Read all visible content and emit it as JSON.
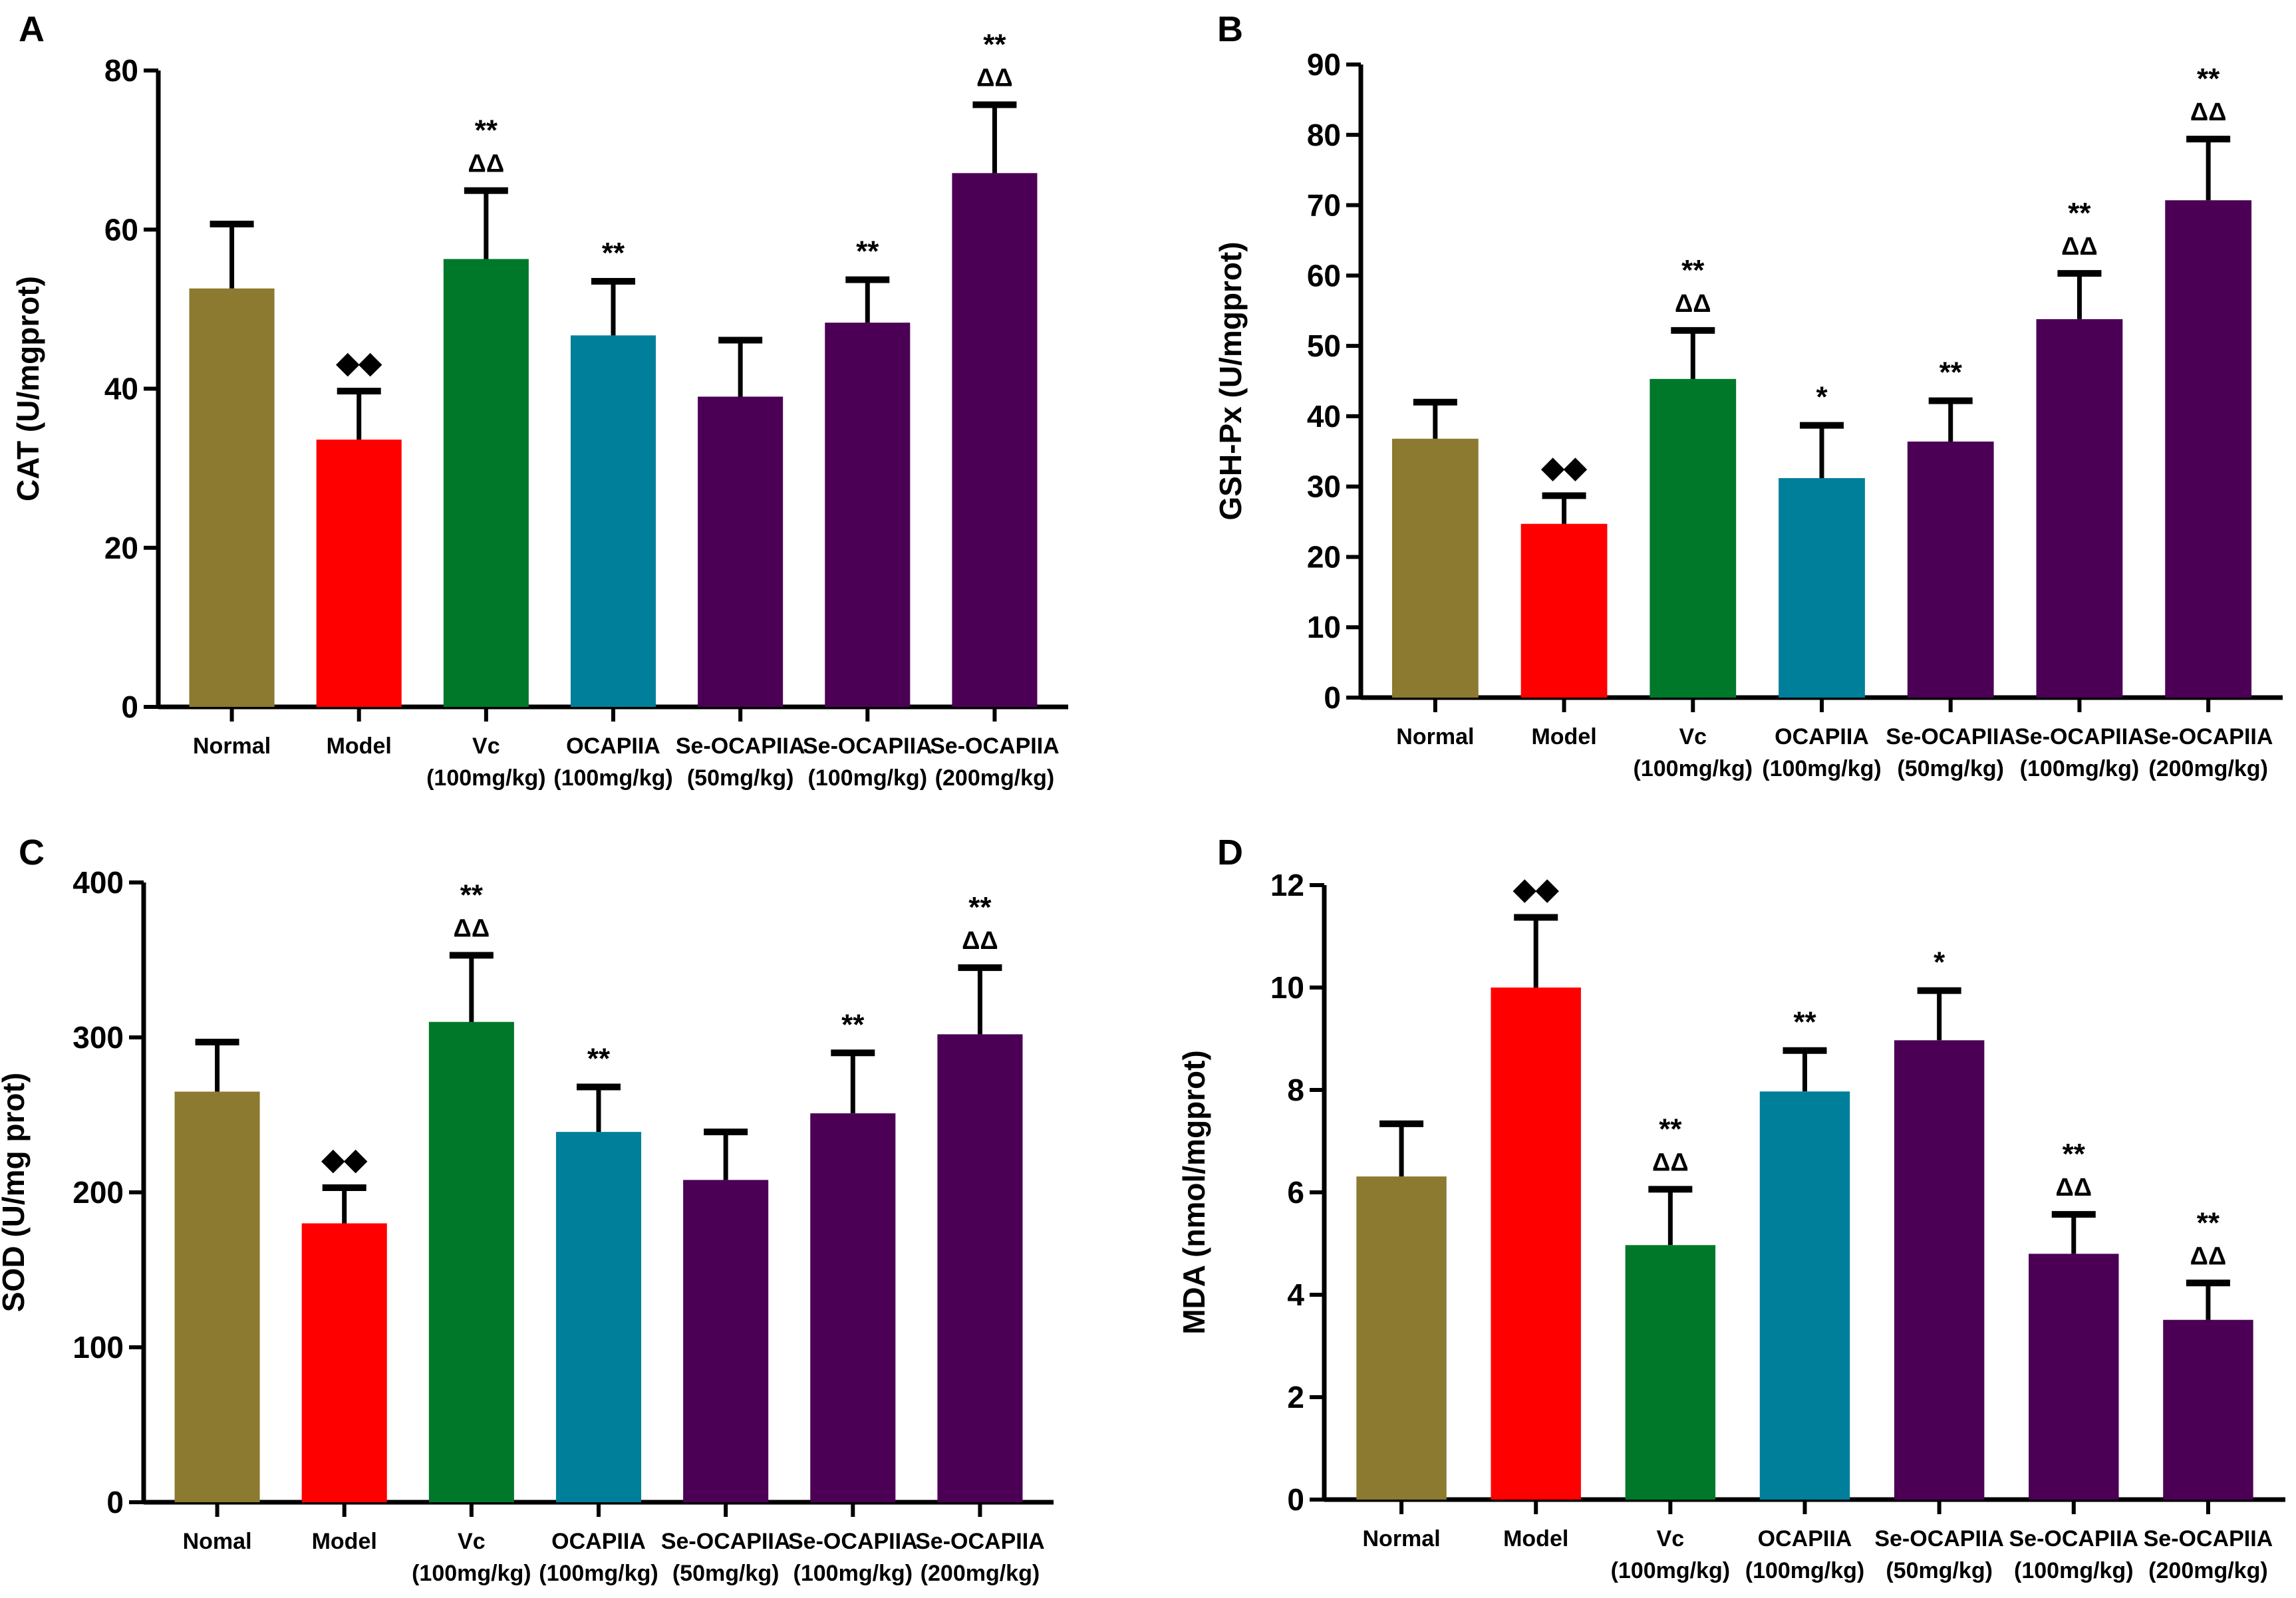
{
  "colors": {
    "olive": "#8B7A2F",
    "red": "#FF0000",
    "green": "#00782A",
    "teal": "#007F9A",
    "purple": "#4B0055"
  },
  "bar_colors": [
    "olive",
    "red",
    "green",
    "teal",
    "purple",
    "purple",
    "purple"
  ],
  "chart_data": [
    {
      "panel": "A",
      "type": "bar",
      "ylabel": "CAT (U/mgprot)",
      "ylim": [
        0,
        80
      ],
      "yticks": [
        0,
        20,
        40,
        60,
        80
      ],
      "categories": [
        [
          "Normal"
        ],
        [
          "Model"
        ],
        [
          "Vc",
          "(100mg/kg)"
        ],
        [
          "OCAPIIA",
          "(100mg/kg)"
        ],
        [
          "Se-OCAPIIA",
          "(50mg/kg)"
        ],
        [
          "Se-OCAPIIA",
          "(100mg/kg)"
        ],
        [
          "Se-OCAPIIA",
          "(200mg/kg)"
        ]
      ],
      "values": [
        52.6,
        33.6,
        56.3,
        46.7,
        39.0,
        48.3,
        67.1
      ],
      "errors": [
        8.1,
        6.1,
        8.6,
        6.8,
        7.1,
        5.4,
        8.6
      ],
      "annotations": [
        [],
        [
          "◆◆"
        ],
        [
          "**",
          "ΔΔ"
        ],
        [
          "**"
        ],
        [],
        [
          "**"
        ],
        [
          "**",
          "ΔΔ"
        ]
      ]
    },
    {
      "panel": "B",
      "type": "bar",
      "ylabel": "GSH-Px (U/mgprot)",
      "ylim": [
        0,
        90
      ],
      "yticks": [
        0,
        10,
        20,
        30,
        40,
        50,
        60,
        70,
        80,
        90
      ],
      "categories": [
        [
          "Normal"
        ],
        [
          "Model"
        ],
        [
          "Vc",
          "(100mg/kg)"
        ],
        [
          "OCAPIIA",
          "(100mg/kg)"
        ],
        [
          "Se-OCAPIIA",
          "(50mg/kg)"
        ],
        [
          "Se-OCAPIIA",
          "(100mg/kg)"
        ],
        [
          "Se-OCAPIIA",
          "(200mg/kg)"
        ]
      ],
      "values": [
        36.8,
        24.7,
        45.3,
        31.2,
        36.4,
        53.8,
        70.7
      ],
      "errors": [
        5.2,
        4.0,
        6.9,
        7.5,
        5.8,
        6.5,
        8.7
      ],
      "annotations": [
        [],
        [
          "◆◆"
        ],
        [
          "**",
          "ΔΔ"
        ],
        [
          "*"
        ],
        [
          "**"
        ],
        [
          "**",
          "ΔΔ"
        ],
        [
          "**",
          "ΔΔ"
        ]
      ]
    },
    {
      "panel": "C",
      "type": "bar",
      "ylabel": "SOD (U/mg prot)",
      "ylim": [
        0,
        400
      ],
      "yticks": [
        0,
        100,
        200,
        300,
        400
      ],
      "categories": [
        [
          "Nomal"
        ],
        [
          "Model"
        ],
        [
          "Vc",
          "(100mg/kg)"
        ],
        [
          "OCAPIIA",
          "(100mg/kg)"
        ],
        [
          "Se-OCAPIIA",
          "(50mg/kg)"
        ],
        [
          "Se-OCAPIIA",
          "(100mg/kg)"
        ],
        [
          "Se-OCAPIIA",
          "(200mg/kg)"
        ]
      ],
      "values": [
        265,
        180,
        310,
        239,
        208,
        251,
        302
      ],
      "errors": [
        32,
        23,
        43,
        29,
        31,
        39,
        43
      ],
      "annotations": [
        [],
        [
          "◆◆"
        ],
        [
          "**",
          "ΔΔ"
        ],
        [
          "**"
        ],
        [],
        [
          "**"
        ],
        [
          "**",
          "ΔΔ"
        ]
      ]
    },
    {
      "panel": "D",
      "type": "bar",
      "ylabel": "MDA (nmol/mgprot)",
      "ylim": [
        0,
        12
      ],
      "yticks": [
        0,
        2,
        4,
        6,
        8,
        10,
        12
      ],
      "categories": [
        [
          "Normal"
        ],
        [
          "Model"
        ],
        [
          "Vc",
          "(100mg/kg)"
        ],
        [
          "OCAPIIA",
          "(100mg/kg)"
        ],
        [
          "Se-OCAPIIA",
          "(50mg/kg)"
        ],
        [
          "Se-OCAPIIA",
          "(100mg/kg)"
        ],
        [
          "Se-OCAPIIA",
          "(200mg/kg)"
        ]
      ],
      "values": [
        6.31,
        10.0,
        4.97,
        7.97,
        8.97,
        4.8,
        3.51
      ],
      "errors": [
        1.03,
        1.37,
        1.09,
        0.8,
        0.97,
        0.77,
        0.72
      ],
      "annotations": [
        [],
        [
          "◆◆"
        ],
        [
          "**",
          "ΔΔ"
        ],
        [
          "**"
        ],
        [
          "*"
        ],
        [
          "**",
          "ΔΔ"
        ],
        [
          "**",
          "ΔΔ"
        ]
      ]
    }
  ]
}
